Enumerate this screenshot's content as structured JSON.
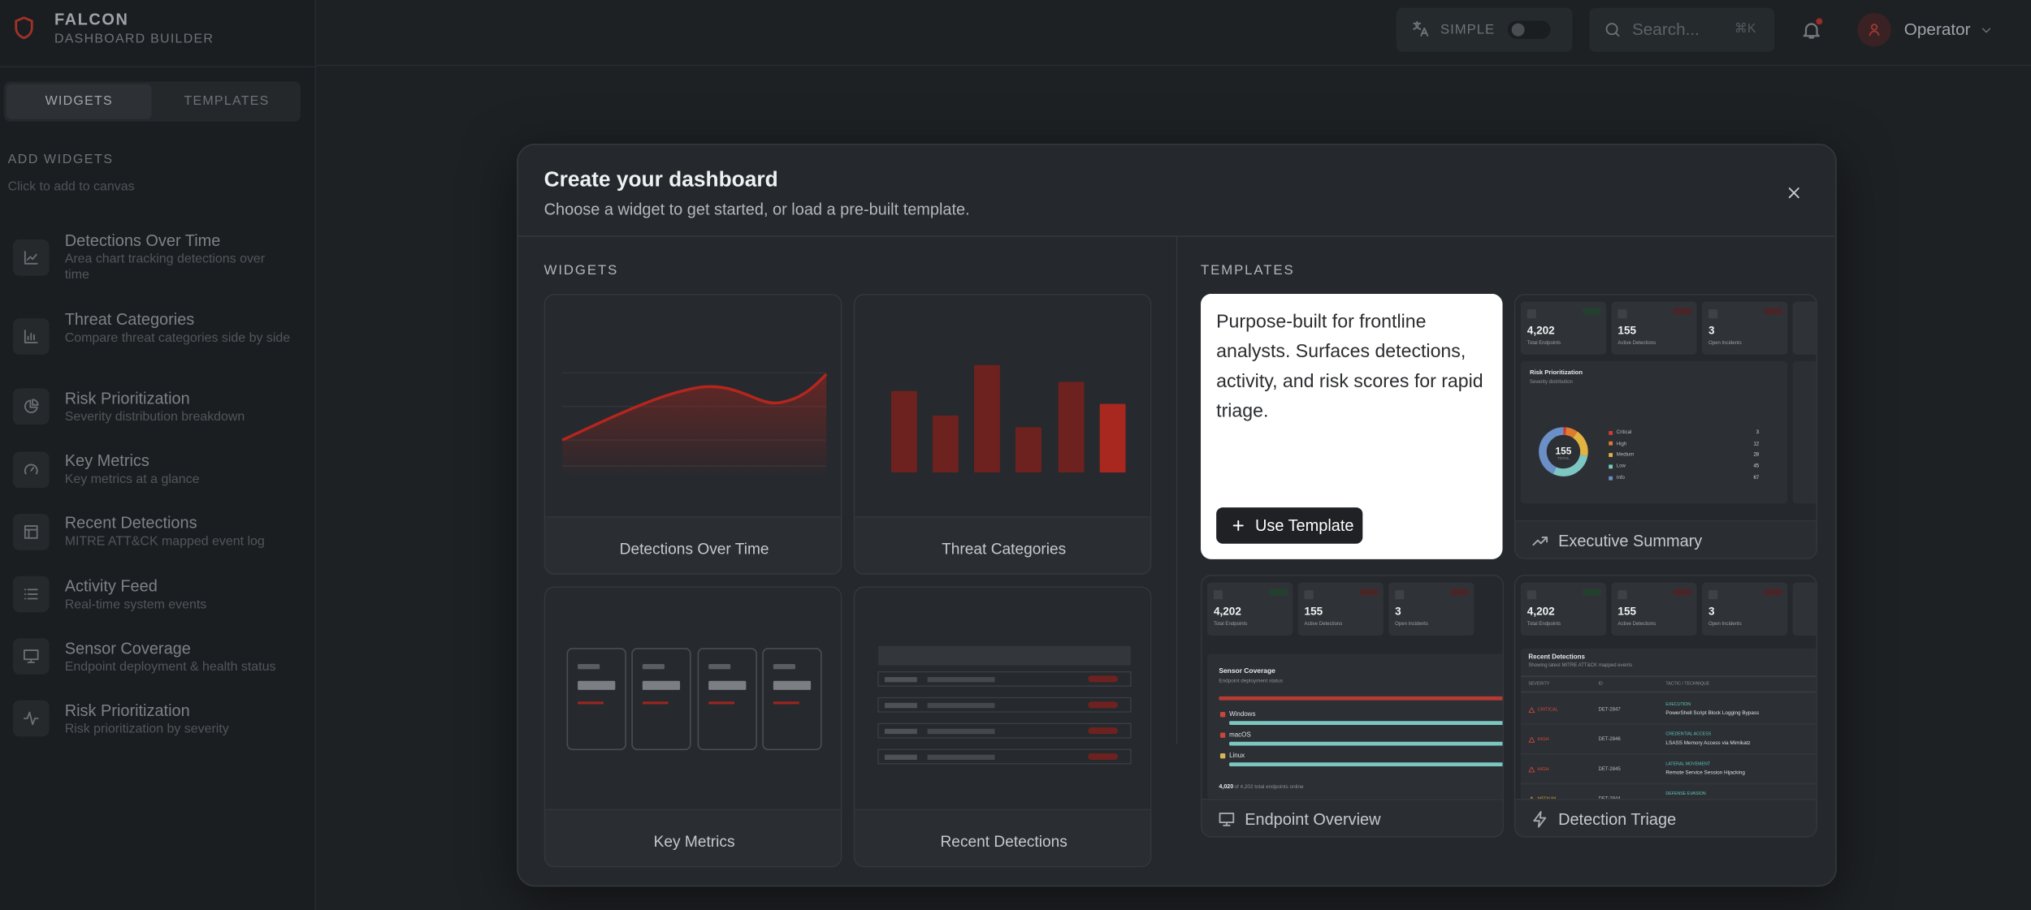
{
  "brand": {
    "name": "FALCON",
    "subtitle": "DASHBOARD BUILDER"
  },
  "topbar": {
    "mode": "SIMPLE",
    "search_placeholder": "Search...",
    "shortcut": "⌘K",
    "user": "Operator"
  },
  "sidebar": {
    "tabs": [
      "WIDGETS",
      "TEMPLATES"
    ],
    "heading": "ADD WIDGETS",
    "hint": "Click to add to canvas",
    "items": [
      {
        "title": "Detections Over Time",
        "description": "Area chart tracking detections over time"
      },
      {
        "title": "Threat Categories",
        "description": "Compare threat categories side by side"
      },
      {
        "title": "Risk Prioritization",
        "description": "Severity distribution breakdown"
      },
      {
        "title": "Key Metrics",
        "description": "Key metrics at a glance"
      },
      {
        "title": "Recent Detections",
        "description": "MITRE ATT&CK mapped event log"
      },
      {
        "title": "Activity Feed",
        "description": "Real-time system events"
      },
      {
        "title": "Sensor Coverage",
        "description": "Endpoint deployment & health status"
      },
      {
        "title": "Risk Prioritization",
        "description": "Risk prioritization by severity"
      }
    ]
  },
  "modal": {
    "title": "Create your dashboard",
    "subtitle": "Choose a widget to get started, or load a pre-built template.",
    "widgets_heading": "WIDGETS",
    "widgets": [
      "Detections Over Time",
      "Threat Categories",
      "Key Metrics",
      "Recent Detections"
    ],
    "templates_heading": "TEMPLATES",
    "featured": {
      "description": "Purpose-built for frontline analysts. Surfaces detections, activity, and risk scores for rapid triage.",
      "action": "Use Template"
    },
    "templates": [
      "Executive Summary",
      "Endpoint Overview",
      "Detection Triage"
    ]
  },
  "preview": {
    "stats": [
      {
        "value": "4,202",
        "label": "Total Endpoints"
      },
      {
        "value": "155",
        "label": "Active Detections"
      },
      {
        "value": "3",
        "label": "Open Incidents"
      }
    ],
    "risk": {
      "title": "Risk Prioritization",
      "subtitle": "Severity distribution",
      "total": "155",
      "total_label": "TOTAL",
      "legend": [
        {
          "name": "Critical",
          "value": 3,
          "color": "#d63b31"
        },
        {
          "name": "High",
          "value": 12,
          "color": "#e07a2e"
        },
        {
          "name": "Medium",
          "value": 28,
          "color": "#e3b341"
        },
        {
          "name": "Low",
          "value": 45,
          "color": "#7cc7c2"
        },
        {
          "name": "Info",
          "value": 67,
          "color": "#6b8fc7"
        }
      ]
    },
    "coverage": {
      "title": "Sensor Coverage",
      "subtitle": "Endpoint deployment status",
      "os": [
        "Windows",
        "macOS",
        "Linux"
      ],
      "online": "4,020",
      "footer": "of 4,202 total endpoints online"
    },
    "detections": {
      "title": "Recent Detections",
      "subtitle": "Showing latest MITRE ATT&CK mapped events",
      "columns": [
        "SEVERITY",
        "ID",
        "TACTIC / TECHNIQUE"
      ],
      "rows": [
        {
          "severity": "CRITICAL",
          "id": "DET-2847",
          "tactic": "EXECUTION",
          "technique": "PowerShell Script Block Logging Bypass"
        },
        {
          "severity": "HIGH",
          "id": "DET-2846",
          "tactic": "CREDENTIAL ACCESS",
          "technique": "LSASS Memory Access via Mimikatz"
        },
        {
          "severity": "HIGH",
          "id": "DET-2845",
          "tactic": "LATERAL MOVEMENT",
          "technique": "Remote Service Session Hijacking"
        },
        {
          "severity": "MEDIUM",
          "id": "DET-2844",
          "tactic": "DEFENSE EVASION"
        }
      ]
    }
  }
}
